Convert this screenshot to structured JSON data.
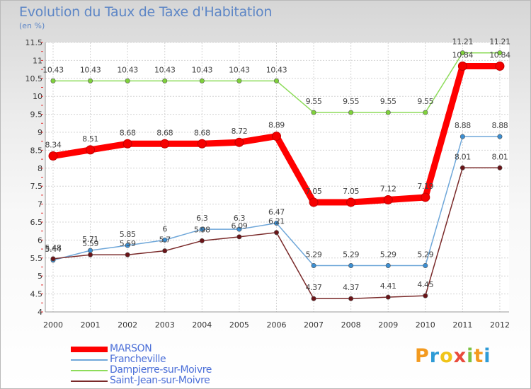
{
  "title": "Evolution du Taux de Taxe d'Habitation",
  "unit_label": "(en %)",
  "logo": {
    "letters": [
      "P",
      "r",
      "o",
      "x",
      "i",
      "t",
      "i"
    ],
    "colors": [
      "#f39a1f",
      "#2e9bd6",
      "#f0c419",
      "#e94b3c",
      "#7cc242",
      "#f39a1f",
      "#2e9bd6"
    ]
  },
  "chart_data": {
    "type": "line",
    "x": [
      "2000",
      "2001",
      "2002",
      "2003",
      "2004",
      "2005",
      "2006",
      "2007",
      "2008",
      "2009",
      "2010",
      "2011",
      "2012"
    ],
    "ylim": [
      4,
      11.5
    ],
    "yticks": [
      4,
      4.5,
      5,
      5.5,
      6,
      6.5,
      7,
      7.5,
      8,
      8.5,
      9,
      9.5,
      10,
      10.5,
      11,
      11.5
    ],
    "grid": true,
    "legend_position": "bottom-left",
    "series": [
      {
        "name": "MARSON",
        "color": "#f50000",
        "line_color": "#ff0000",
        "values": [
          8.34,
          8.51,
          8.68,
          8.68,
          8.68,
          8.72,
          8.89,
          7.05,
          7.05,
          7.12,
          7.19,
          10.84,
          10.84
        ],
        "labels": [
          "8.34",
          "8.51",
          "8.68",
          "8.68",
          "8.68",
          "8.72",
          "8.89",
          "7.05",
          "7.05",
          "7.12",
          "7.19",
          "10.84",
          "10.84"
        ]
      },
      {
        "name": "Francheville",
        "color": "#3b8fd3",
        "line_color": "#6fa7d9",
        "values": [
          5.44,
          5.71,
          5.85,
          6,
          6.3,
          6.3,
          6.47,
          5.29,
          5.29,
          5.29,
          5.29,
          8.88,
          8.88
        ],
        "labels": [
          "5.44",
          "5.71",
          "5.85",
          "6",
          "6.3",
          "6.3",
          "6.47",
          "5.29",
          "5.29",
          "5.29",
          "5.29",
          "8.88",
          "8.88"
        ]
      },
      {
        "name": "Dampierre-sur-Moivre",
        "color": "#7fd13b",
        "line_color": "#8ddc5a",
        "values": [
          10.43,
          10.43,
          10.43,
          10.43,
          10.43,
          10.43,
          10.43,
          9.55,
          9.55,
          9.55,
          9.55,
          11.21,
          11.21
        ],
        "labels": [
          "10.43",
          "10.43",
          "10.43",
          "10.43",
          "10.43",
          "10.43",
          "10.43",
          "9.55",
          "9.55",
          "9.55",
          "9.55",
          "11.21",
          "11.21"
        ]
      },
      {
        "name": "Saint-Jean-sur-Moivre",
        "color": "#6a1418",
        "line_color": "#7a2a2a",
        "values": [
          5.48,
          5.59,
          5.59,
          5.7,
          5.98,
          6.09,
          6.21,
          4.37,
          4.37,
          4.41,
          4.45,
          8.01,
          8.01
        ],
        "labels": [
          "5.48",
          "5.59",
          "5.59",
          "5.7",
          "5.98",
          "6.09",
          "6.21",
          "4.37",
          "4.37",
          "4.41",
          "4.45",
          "8.01",
          "8.01"
        ]
      }
    ]
  }
}
